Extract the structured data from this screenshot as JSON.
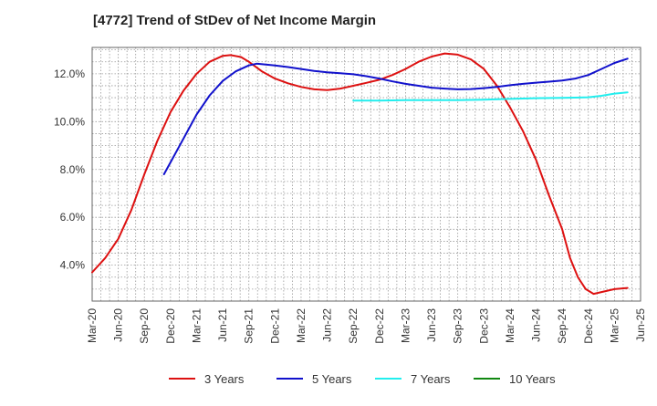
{
  "chart_data": {
    "type": "line",
    "title": "[4772]  Trend of StDev of Net Income Margin",
    "xlabel": "",
    "ylabel": "",
    "x": [
      "Mar-20",
      "Jun-20",
      "Sep-20",
      "Dec-20",
      "Mar-21",
      "Jun-21",
      "Sep-21",
      "Dec-21",
      "Mar-22",
      "Jun-22",
      "Sep-22",
      "Dec-22",
      "Mar-23",
      "Jun-23",
      "Sep-23",
      "Dec-23",
      "Mar-24",
      "Jun-24",
      "Sep-24",
      "Dec-24",
      "Mar-25",
      "Jun-25"
    ],
    "y_ticks": [
      "4.0%",
      "6.0%",
      "8.0%",
      "10.0%",
      "12.0%"
    ],
    "ylim": [
      2.5,
      13.1
    ],
    "grid": true,
    "legend_position": "bottom",
    "series": [
      {
        "name": "3 Years",
        "color": "#dd1111",
        "points": [
          [
            0,
            3.7
          ],
          [
            0.5,
            4.3
          ],
          [
            1,
            5.1
          ],
          [
            1.5,
            6.3
          ],
          [
            2,
            7.8
          ],
          [
            2.5,
            9.2
          ],
          [
            3,
            10.4
          ],
          [
            3.5,
            11.3
          ],
          [
            4,
            12.0
          ],
          [
            4.5,
            12.5
          ],
          [
            5,
            12.75
          ],
          [
            5.3,
            12.78
          ],
          [
            5.7,
            12.7
          ],
          [
            6,
            12.5
          ],
          [
            6.5,
            12.1
          ],
          [
            7,
            11.8
          ],
          [
            7.5,
            11.6
          ],
          [
            8,
            11.45
          ],
          [
            8.5,
            11.35
          ],
          [
            9,
            11.32
          ],
          [
            9.5,
            11.38
          ],
          [
            10,
            11.5
          ],
          [
            10.5,
            11.62
          ],
          [
            11,
            11.75
          ],
          [
            11.5,
            11.95
          ],
          [
            12,
            12.2
          ],
          [
            12.5,
            12.5
          ],
          [
            13,
            12.72
          ],
          [
            13.5,
            12.85
          ],
          [
            14,
            12.8
          ],
          [
            14.5,
            12.6
          ],
          [
            15,
            12.2
          ],
          [
            15.5,
            11.5
          ],
          [
            16,
            10.6
          ],
          [
            16.5,
            9.6
          ],
          [
            17,
            8.4
          ],
          [
            17.5,
            6.9
          ],
          [
            18,
            5.5
          ],
          [
            18.3,
            4.3
          ],
          [
            18.6,
            3.5
          ],
          [
            18.9,
            3.0
          ],
          [
            19.2,
            2.8
          ],
          [
            19.6,
            2.9
          ],
          [
            20,
            3.0
          ],
          [
            20.5,
            3.05
          ]
        ]
      },
      {
        "name": "5 Years",
        "color": "#1111cc",
        "points": [
          [
            2.75,
            7.8
          ],
          [
            3,
            8.3
          ],
          [
            3.5,
            9.3
          ],
          [
            4,
            10.3
          ],
          [
            4.5,
            11.1
          ],
          [
            5,
            11.7
          ],
          [
            5.5,
            12.1
          ],
          [
            6,
            12.35
          ],
          [
            6.3,
            12.42
          ],
          [
            7,
            12.35
          ],
          [
            7.5,
            12.28
          ],
          [
            8,
            12.2
          ],
          [
            8.5,
            12.12
          ],
          [
            9,
            12.06
          ],
          [
            9.5,
            12.02
          ],
          [
            10,
            11.98
          ],
          [
            10.5,
            11.9
          ],
          [
            11,
            11.8
          ],
          [
            11.5,
            11.68
          ],
          [
            12,
            11.58
          ],
          [
            12.5,
            11.5
          ],
          [
            13,
            11.42
          ],
          [
            13.5,
            11.38
          ],
          [
            14,
            11.35
          ],
          [
            14.5,
            11.36
          ],
          [
            15,
            11.4
          ],
          [
            15.5,
            11.45
          ],
          [
            16,
            11.52
          ],
          [
            16.5,
            11.58
          ],
          [
            17,
            11.63
          ],
          [
            17.5,
            11.67
          ],
          [
            18,
            11.72
          ],
          [
            18.5,
            11.8
          ],
          [
            19,
            11.95
          ],
          [
            19.5,
            12.2
          ],
          [
            20,
            12.45
          ],
          [
            20.5,
            12.63
          ]
        ]
      },
      {
        "name": "7 Years",
        "color": "#22eeee",
        "points": [
          [
            10,
            10.88
          ],
          [
            11,
            10.88
          ],
          [
            12,
            10.9
          ],
          [
            13,
            10.9
          ],
          [
            14,
            10.9
          ],
          [
            15,
            10.92
          ],
          [
            16,
            10.95
          ],
          [
            17,
            10.98
          ],
          [
            18,
            10.99
          ],
          [
            19,
            11.02
          ],
          [
            19.5,
            11.08
          ],
          [
            20,
            11.17
          ],
          [
            20.5,
            11.22
          ]
        ]
      },
      {
        "name": "10 Years",
        "color": "#118811",
        "points": []
      }
    ]
  }
}
